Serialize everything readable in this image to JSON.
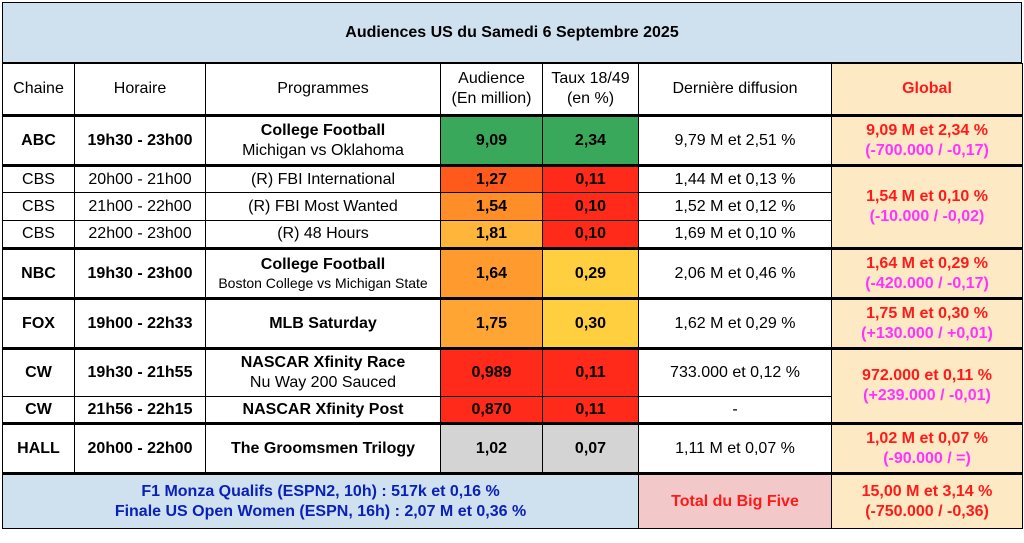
{
  "title": "Audiences US du Samedi 6 Septembre 2025",
  "colors": {
    "dark_green": "#3aa85a",
    "red": "#ff2a1a",
    "orange_red": "#ff5a1c",
    "orange": "#ff8d28",
    "orange_light": "#ffa533",
    "amber": "#ffb43a",
    "yellow": "#ffcf40",
    "grey": "#d4d4d4"
  },
  "headers": {
    "chaine": "Chaine",
    "horaire": "Horaire",
    "programmes": "Programmes",
    "audience_1": "Audience",
    "audience_2": "(En million)",
    "taux_1": "Taux 18/49",
    "taux_2": "(en %)",
    "derniere": "Dernière diffusion",
    "global": "Global"
  },
  "rows": [
    {
      "chaine": "ABC",
      "horaire": "19h30 - 23h00",
      "prog_title": "College Football",
      "prog_sub": "Michigan vs Oklahoma",
      "audience": "9,09",
      "taux": "2,34",
      "derniere": "9,79 M et 2,51 %",
      "aud_color": "#3aa85a",
      "taux_color": "#3aa85a"
    },
    {
      "chaine": "CBS",
      "horaire": "20h00 - 21h00",
      "prog": "(R) FBI International",
      "audience": "1,27",
      "taux": "0,11",
      "derniere": "1,44 M et 0,13 %",
      "aud_color": "#ff5a1c",
      "taux_color": "#ff2a1a"
    },
    {
      "chaine": "CBS",
      "horaire": "21h00 - 22h00",
      "prog": "(R) FBI Most Wanted",
      "audience": "1,54",
      "taux": "0,10",
      "derniere": "1,52 M et 0,12 %",
      "aud_color": "#ff8d28",
      "taux_color": "#ff2a1a"
    },
    {
      "chaine": "CBS",
      "horaire": "22h00 - 23h00",
      "prog": "(R) 48 Hours",
      "audience": "1,81",
      "taux": "0,10",
      "derniere": "1,69 M et 0,10 %",
      "aud_color": "#ffb43a",
      "taux_color": "#ff2a1a"
    },
    {
      "chaine": "NBC",
      "horaire": "19h30 - 23h00",
      "prog_title": "College Football",
      "prog_sub": "Boston College vs Michigan State",
      "audience": "1,64",
      "taux": "0,29",
      "derniere": "2,06 M et 0,46 %",
      "aud_color": "#ff9a2e",
      "taux_color": "#ffcf40"
    },
    {
      "chaine": "FOX",
      "horaire": "19h00 - 22h33",
      "prog_title": "MLB Saturday",
      "audience": "1,75",
      "taux": "0,30",
      "derniere": "1,62 M et 0,29 %",
      "aud_color": "#ffa533",
      "taux_color": "#ffcf40"
    },
    {
      "chaine": "CW",
      "horaire": "19h30 - 21h55",
      "prog_title": "NASCAR Xfinity Race",
      "prog_sub": "Nu Way 200 Sauced",
      "audience": "0,989",
      "taux": "0,11",
      "derniere": "733.000 et 0,12 %",
      "aud_color": "#ff2a1a",
      "taux_color": "#ff2a1a"
    },
    {
      "chaine": "CW",
      "horaire": "21h56 - 22h15",
      "prog_title": "NASCAR Xfinity Post",
      "audience": "0,870",
      "taux": "0,11",
      "derniere": "-",
      "aud_color": "#ff2a1a",
      "taux_color": "#ff2a1a"
    },
    {
      "chaine": "HALL",
      "horaire": "20h00 - 22h00",
      "prog_title": "The Groomsmen Trilogy",
      "audience": "1,02",
      "taux": "0,07",
      "derniere": "1,11 M et 0,07 %",
      "aud_color": "#d4d4d4",
      "taux_color": "#d4d4d4"
    }
  ],
  "global": {
    "abc": {
      "main": "9,09 M et 2,34 %",
      "diff": "(-700.000 / -0,17)"
    },
    "cbs": {
      "main": "1,54 M et 0,10 %",
      "diff": "(-10.000 / -0,02)"
    },
    "nbc": {
      "main": "1,64 M et 0,29 %",
      "diff": "(-420.000 / -0,17)"
    },
    "fox": {
      "main": "1,75 M et 0,30 %",
      "diff": "(+130.000 / +0,01)"
    },
    "cw": {
      "main": "972.000 et 0,11 %",
      "diff": "(+239.000 / -0,01)"
    },
    "hall": {
      "main": "1,02 M et 0,07 %",
      "diff": "(-90.000 / =)"
    }
  },
  "footer": {
    "line1": "F1 Monza Qualifs (ESPN2, 10h) : 517k et 0,16 %",
    "line2": "Finale US Open Women (ESPN, 16h) : 2,07 M et 0,36 %",
    "total_label": "Total du Big Five",
    "total_main": "15,00 M et 3,14 %",
    "total_diff": "(-750.000 / -0,36)"
  }
}
